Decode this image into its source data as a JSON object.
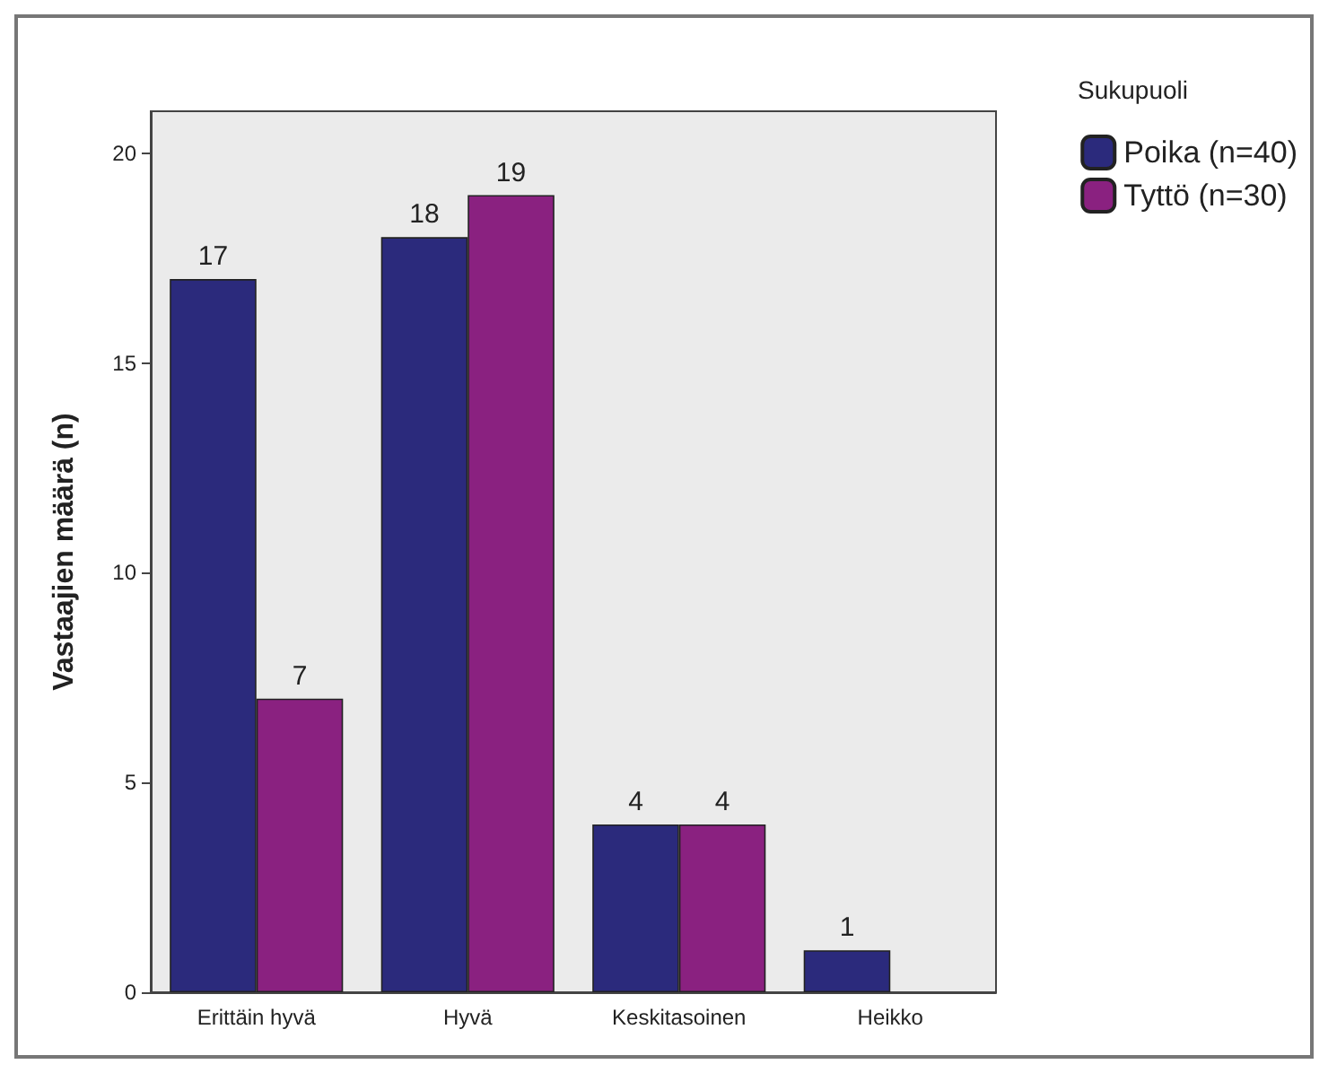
{
  "chart_data": {
    "type": "bar",
    "ylabel": "Vastaajien määrä (n)",
    "legend_title": "Sukupuoli",
    "categories": [
      "Erittäin hyvä",
      "Hyvä",
      "Keskitasoinen",
      "Heikko"
    ],
    "series": [
      {
        "name": "Poika (n=40)",
        "color": "#2b2a7c",
        "values": [
          17,
          18,
          4,
          1
        ]
      },
      {
        "name": "Tyttö (n=30)",
        "color": "#8a2180",
        "values": [
          7,
          19,
          4,
          null
        ]
      }
    ],
    "ylim": [
      0,
      21
    ],
    "yticks": [
      0,
      5,
      10,
      15,
      20
    ],
    "grid": false,
    "legend": "top right",
    "data_labels": true
  }
}
